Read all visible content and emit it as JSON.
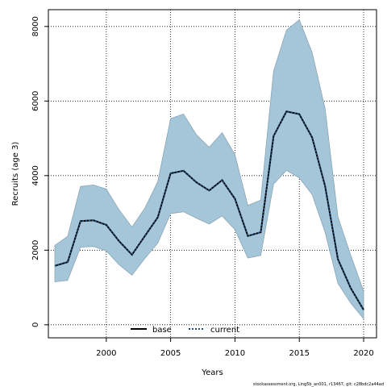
{
  "chart_data": {
    "type": "line",
    "xlabel": "Years",
    "ylabel": "Recruits (age 3)",
    "xlim": [
      1995.5,
      2021
    ],
    "ylim": [
      -350,
      8450
    ],
    "x_ticks": [
      2000,
      2005,
      2010,
      2015,
      2020
    ],
    "y_ticks": [
      0,
      2000,
      4000,
      6000,
      8000
    ],
    "grid": true,
    "legend_position": "bottom-center",
    "series": [
      {
        "name": "base",
        "color": "#000000",
        "style": "solid",
        "x": [
          1996,
          1997,
          1998,
          1999,
          2000,
          2001,
          2002,
          2003,
          2004,
          2005,
          2006,
          2007,
          2008,
          2009,
          2010,
          2011,
          2012,
          2013,
          2014,
          2015,
          2016,
          2017,
          2018,
          2019,
          2020
        ],
        "values": [
          1580,
          1680,
          2780,
          2800,
          2680,
          2240,
          1880,
          2380,
          2880,
          4060,
          4130,
          3820,
          3600,
          3880,
          3380,
          2380,
          2480,
          5060,
          5720,
          5650,
          5020,
          3720,
          1760,
          980,
          400
        ]
      },
      {
        "name": "current",
        "color": "#1f4e79",
        "style": "dotted",
        "x": [
          1996,
          1997,
          1998,
          1999,
          2000,
          2001,
          2002,
          2003,
          2004,
          2005,
          2006,
          2007,
          2008,
          2009,
          2010,
          2011,
          2012,
          2013,
          2014,
          2015,
          2016,
          2017,
          2018,
          2019,
          2020
        ],
        "values": [
          1580,
          1680,
          2780,
          2800,
          2680,
          2240,
          1880,
          2380,
          2880,
          4060,
          4130,
          3820,
          3600,
          3880,
          3380,
          2380,
          2480,
          5060,
          5720,
          5650,
          5020,
          3720,
          1760,
          980,
          400
        ]
      }
    ],
    "confidence_band": {
      "color": "#a5c6d8",
      "x": [
        1996,
        1997,
        1998,
        1999,
        2000,
        2001,
        2002,
        2003,
        2004,
        2005,
        2006,
        2007,
        2008,
        2009,
        2010,
        2011,
        2012,
        2013,
        2014,
        2015,
        2016,
        2017,
        2018,
        2019,
        2020
      ],
      "upper": [
        2130,
        2370,
        3710,
        3750,
        3640,
        3080,
        2620,
        3130,
        3840,
        5530,
        5650,
        5100,
        4760,
        5150,
        4560,
        3200,
        3340,
        6800,
        7900,
        8180,
        7300,
        5800,
        2900,
        1860,
        900
      ],
      "lower": [
        1150,
        1190,
        2080,
        2100,
        1980,
        1610,
        1330,
        1780,
        2190,
        2980,
        3030,
        2860,
        2700,
        2920,
        2550,
        1790,
        1860,
        3770,
        4140,
        3940,
        3490,
        2480,
        1110,
        580,
        160
      ]
    }
  },
  "footer": "stockassessment.org, Ling5b_an001, r13467, git: c28bdc2a44ad"
}
